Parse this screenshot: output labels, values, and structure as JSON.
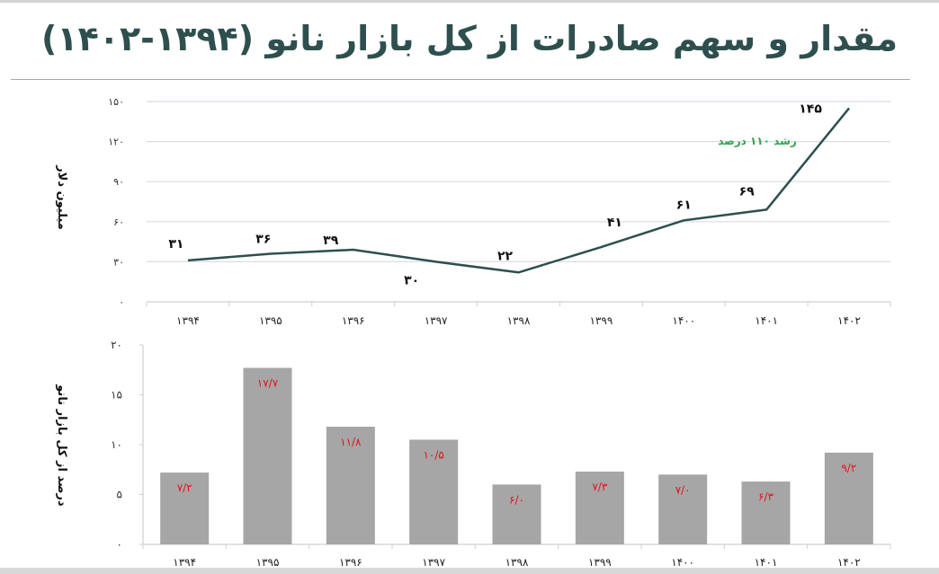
{
  "title": "مقدار و سهم صادرات از کل بازار نانو (۱۳۹۴-۱۴۰۲)",
  "colors": {
    "title": "#2f4f4f",
    "line": "#2e4f4f",
    "bar": "#a6a6a6",
    "bar_label": "#e8101a",
    "annotation": "#2ea44f",
    "gridline": "#d9dde3"
  },
  "chart_data": [
    {
      "type": "line",
      "title": "",
      "xlabel": "",
      "ylabel": "میلیون دلار",
      "categories": [
        "۱۳۹۴",
        "۱۳۹۵",
        "۱۳۹۶",
        "۱۳۹۷",
        "۱۳۹۸",
        "۱۳۹۹",
        "۱۴۰۰",
        "۱۴۰۱",
        "۱۴۰۲"
      ],
      "values": [
        31,
        36,
        39,
        30,
        22,
        41,
        61,
        69,
        145
      ],
      "data_labels": [
        "۳۱",
        "۳۶",
        "۳۹",
        "۳۰",
        "۲۲",
        "۴۱",
        "۶۱",
        "۶۹",
        "۱۴۵"
      ],
      "ylim": [
        0,
        150
      ],
      "yticks": [
        0,
        30,
        60,
        90,
        120,
        150
      ],
      "ytick_labels": [
        "۰",
        "۳۰",
        "۶۰",
        "۹۰",
        "۱۲۰",
        "۱۵۰"
      ],
      "grid": true,
      "annotation": "رشد ۱۱۰ درصد"
    },
    {
      "type": "bar",
      "title": "",
      "xlabel": "",
      "ylabel": "درصد از کل بازار نانو",
      "categories": [
        "۱۳۹۴",
        "۱۳۹۵",
        "۱۳۹۶",
        "۱۳۹۷",
        "۱۳۹۸",
        "۱۳۹۹",
        "۱۴۰۰",
        "۱۴۰۱",
        "۱۴۰۲"
      ],
      "values": [
        7.2,
        17.7,
        11.8,
        10.5,
        6.0,
        7.3,
        7.0,
        6.3,
        9.2
      ],
      "data_labels": [
        "۷/۲",
        "۱۷/۷",
        "۱۱/۸",
        "۱۰/۵",
        "۶/۰",
        "۷/۳",
        "۷/۰",
        "۶/۳",
        "۹/۲"
      ],
      "ylim": [
        0,
        20
      ],
      "yticks": [
        0,
        5,
        10,
        15,
        20
      ],
      "ytick_labels": [
        "۰",
        "۵",
        "۱۰",
        "۱۵",
        "۲۰"
      ],
      "grid": false
    }
  ]
}
